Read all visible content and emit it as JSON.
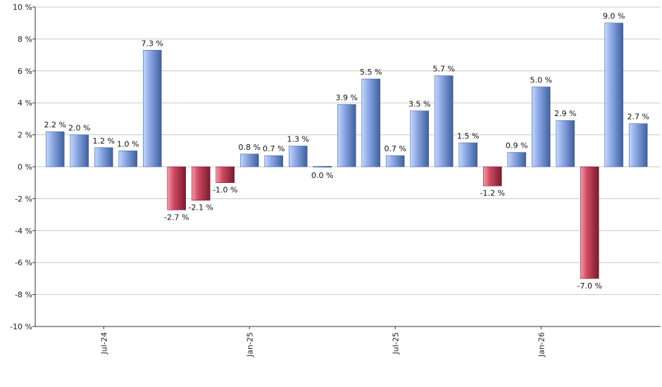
{
  "chart_data": {
    "type": "bar",
    "title": "",
    "xlabel": "",
    "ylabel": "",
    "ylim": [
      -10,
      10
    ],
    "y_ticks": [
      10,
      8,
      6,
      4,
      2,
      0,
      -2,
      -4,
      -6,
      -8,
      -10
    ],
    "y_tick_labels": [
      "10 %",
      "8 %",
      "6 %",
      "4 %",
      "2 %",
      "0 %",
      "-2 %",
      "-4 %",
      "-6 %",
      "-8 %",
      "-10 %"
    ],
    "grid": true,
    "legend": "none",
    "x_tick_labels": [
      {
        "label": "Jul-24",
        "index": 2
      },
      {
        "label": "Jan-25",
        "index": 8
      },
      {
        "label": "Jul-25",
        "index": 14
      },
      {
        "label": "Jan-26",
        "index": 20
      }
    ],
    "values": [
      2.2,
      2.0,
      1.2,
      1.0,
      7.3,
      -2.7,
      -2.1,
      -1.0,
      0.8,
      0.7,
      1.3,
      0.0,
      3.9,
      5.5,
      0.7,
      3.5,
      5.7,
      1.5,
      -1.2,
      0.9,
      5.0,
      2.9,
      -7.0,
      9.0,
      2.7
    ],
    "value_labels": [
      "2.2 %",
      "2.0 %",
      "1.2 %",
      "1.0 %",
      "7.3 %",
      "-2.7 %",
      "-2.1 %",
      "-1.0 %",
      "0.8 %",
      "0.7 %",
      "1.3 %",
      "0.0 %",
      "3.9 %",
      "5.5 %",
      "0.7 %",
      "3.5 %",
      "5.7 %",
      "1.5 %",
      "-1.2 %",
      "0.9 %",
      "5.0 %",
      "2.9 %",
      "-7.0 %",
      "9.0 %",
      "2.7 %"
    ],
    "colors": {
      "positive": "#7f9ddc",
      "negative": "#c0334f",
      "grid": "#c8c8c8",
      "axis": "#333333"
    }
  }
}
